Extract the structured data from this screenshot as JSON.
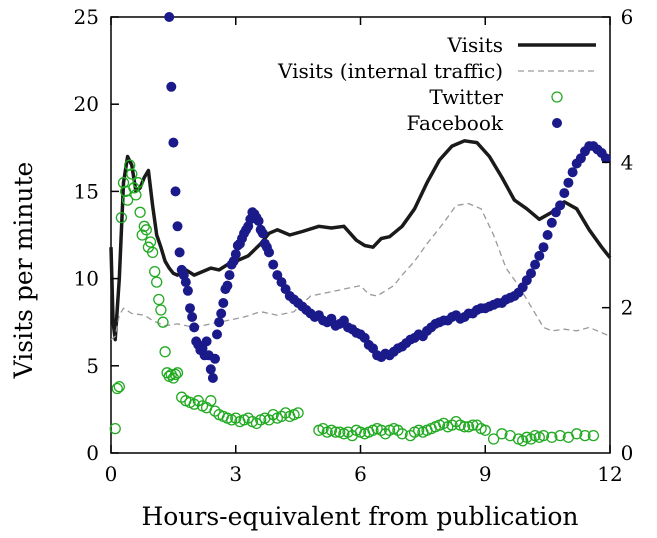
{
  "chart_data": {
    "type": "line",
    "xlabel": "Hours-equivalent from publication",
    "ylabel": "Visits per minute",
    "xlim": [
      0,
      12
    ],
    "ylim": [
      0,
      25
    ],
    "y2lim": [
      0,
      6
    ],
    "x_ticks": [
      0,
      3,
      6,
      9,
      12
    ],
    "y_ticks": [
      0,
      5,
      10,
      15,
      20,
      25
    ],
    "y2_ticks": [
      2,
      4,
      6
    ],
    "grid": false,
    "legend_position": "top-right",
    "series": [
      {
        "name": "Visits",
        "style": "thick-solid",
        "color": "#1a1a1a",
        "axis": "left",
        "x": [
          0.0,
          0.05,
          0.1,
          0.2,
          0.3,
          0.4,
          0.5,
          0.6,
          0.7,
          0.8,
          0.9,
          1.0,
          1.1,
          1.2,
          1.3,
          1.4,
          1.5,
          1.6,
          1.8,
          2.0,
          2.2,
          2.4,
          2.6,
          2.8,
          3.0,
          3.3,
          3.6,
          3.8,
          4.0,
          4.3,
          4.6,
          5.0,
          5.3,
          5.6,
          5.9,
          6.1,
          6.3,
          6.5,
          6.7,
          7.0,
          7.3,
          7.6,
          7.9,
          8.2,
          8.5,
          8.8,
          9.1,
          9.4,
          9.7,
          10.0,
          10.3,
          10.6,
          10.9,
          11.2,
          11.5,
          11.8,
          12.0
        ],
        "y": [
          11.8,
          7.5,
          6.5,
          10,
          15.5,
          17,
          16.5,
          15,
          15.2,
          15.8,
          16.2,
          14.2,
          12.5,
          11.8,
          11.0,
          10.6,
          10.3,
          10.2,
          10.5,
          10.2,
          10.4,
          10.6,
          10.5,
          10.8,
          11.0,
          11.3,
          12.0,
          12.6,
          12.8,
          12.5,
          12.7,
          13.0,
          12.9,
          13.0,
          12.2,
          11.9,
          11.8,
          12.3,
          12.4,
          13.0,
          14.0,
          15.5,
          16.8,
          17.6,
          17.9,
          17.8,
          17.0,
          15.8,
          14.5,
          14.0,
          13.4,
          13.8,
          14.4,
          14.0,
          12.8,
          11.8,
          11.2
        ]
      },
      {
        "name": "Visits (internal traffic)",
        "style": "thin-dashed",
        "color": "#9a9a9a",
        "axis": "left",
        "x": [
          0.0,
          0.1,
          0.2,
          0.3,
          0.5,
          0.8,
          1.0,
          1.3,
          1.6,
          2.0,
          2.4,
          2.8,
          3.2,
          3.6,
          4.0,
          4.4,
          4.8,
          5.2,
          5.6,
          6.0,
          6.2,
          6.4,
          6.6,
          6.8,
          7.0,
          7.3,
          7.6,
          8.0,
          8.3,
          8.6,
          8.9,
          9.2,
          9.5,
          9.8,
          10.1,
          10.4,
          10.6,
          10.9,
          11.2,
          11.5,
          11.8,
          12.0
        ],
        "y": [
          6.5,
          6.7,
          7.9,
          8.3,
          8.0,
          7.9,
          7.6,
          7.3,
          7.4,
          7.2,
          7.4,
          7.6,
          7.8,
          8.1,
          7.9,
          8.1,
          9.0,
          9.2,
          9.4,
          9.6,
          9.1,
          9.0,
          9.3,
          9.6,
          10.2,
          11.0,
          12.0,
          13.2,
          14.2,
          14.3,
          14.0,
          12.5,
          10.6,
          9.6,
          8.4,
          7.2,
          7.0,
          7.1,
          7.0,
          7.2,
          6.9,
          6.7
        ]
      },
      {
        "name": "Twitter",
        "style": "open-circle",
        "color": "#22aa22",
        "axis": "left",
        "x": [
          0.1,
          0.15,
          0.2,
          0.25,
          0.3,
          0.35,
          0.4,
          0.45,
          0.5,
          0.55,
          0.6,
          0.65,
          0.7,
          0.75,
          0.8,
          0.85,
          0.9,
          0.95,
          1.0,
          1.05,
          1.1,
          1.15,
          1.2,
          1.25,
          1.3,
          1.35,
          1.4,
          1.45,
          1.5,
          1.55,
          1.6,
          1.7,
          1.8,
          1.9,
          2.0,
          2.1,
          2.2,
          2.3,
          2.4,
          2.5,
          2.6,
          2.7,
          2.8,
          2.9,
          3.0,
          3.1,
          3.2,
          3.3,
          3.4,
          3.5,
          3.6,
          3.7,
          3.8,
          3.9,
          4.0,
          4.1,
          4.2,
          4.3,
          4.4,
          4.5,
          5.0,
          5.1,
          5.2,
          5.3,
          5.4,
          5.5,
          5.6,
          5.7,
          5.8,
          5.9,
          6.0,
          6.1,
          6.2,
          6.3,
          6.4,
          6.5,
          6.6,
          6.7,
          6.8,
          6.9,
          7.0,
          7.2,
          7.3,
          7.4,
          7.5,
          7.6,
          7.7,
          7.8,
          7.9,
          8.0,
          8.1,
          8.2,
          8.3,
          8.4,
          8.5,
          8.6,
          8.7,
          8.8,
          8.9,
          9.0,
          9.2,
          9.4,
          9.6,
          9.8,
          9.9,
          10.0,
          10.1,
          10.2,
          10.3,
          10.4,
          10.6,
          10.8,
          11.0,
          11.2,
          11.4,
          11.6
        ],
        "y": [
          1.4,
          3.7,
          3.8,
          13.5,
          15.5,
          15.0,
          14.5,
          16.5,
          16.0,
          15.2,
          14.8,
          15.5,
          13.8,
          12.5,
          13.0,
          12.8,
          11.8,
          12.1,
          11.5,
          10.4,
          9.8,
          8.8,
          8.2,
          7.5,
          5.8,
          4.6,
          4.4,
          4.5,
          4.3,
          4.5,
          4.6,
          3.2,
          3.0,
          2.9,
          2.8,
          3.0,
          2.7,
          2.6,
          3.0,
          2.4,
          2.2,
          2.1,
          2.0,
          1.9,
          2.0,
          1.8,
          1.9,
          2.0,
          1.8,
          1.7,
          1.9,
          2.0,
          1.9,
          2.2,
          2.0,
          2.1,
          2.3,
          2.1,
          2.2,
          2.3,
          1.3,
          1.4,
          1.2,
          1.3,
          1.2,
          1.2,
          1.1,
          1.2,
          1.0,
          1.3,
          1.2,
          1.1,
          1.2,
          1.3,
          1.4,
          1.3,
          1.1,
          1.3,
          1.4,
          1.3,
          1.1,
          1.0,
          1.2,
          1.3,
          1.2,
          1.3,
          1.4,
          1.5,
          1.6,
          1.7,
          1.5,
          1.6,
          1.8,
          1.6,
          1.5,
          1.5,
          1.6,
          1.6,
          1.4,
          1.3,
          0.8,
          1.1,
          1.0,
          0.8,
          0.7,
          0.9,
          0.8,
          1.0,
          0.9,
          1.0,
          0.9,
          1.0,
          0.9,
          1.1,
          1.0,
          1.0
        ]
      },
      {
        "name": "Facebook",
        "style": "filled-circle",
        "color": "#1a1a8a",
        "axis": "left",
        "x": [
          1.4,
          1.45,
          1.5,
          1.55,
          1.6,
          1.65,
          1.7,
          1.75,
          1.8,
          1.85,
          1.9,
          1.95,
          2.0,
          2.05,
          2.1,
          2.15,
          2.2,
          2.25,
          2.3,
          2.35,
          2.4,
          2.45,
          2.5,
          2.55,
          2.6,
          2.65,
          2.7,
          2.75,
          2.8,
          2.85,
          2.9,
          2.95,
          3.0,
          3.05,
          3.1,
          3.15,
          3.2,
          3.25,
          3.3,
          3.35,
          3.4,
          3.45,
          3.5,
          3.55,
          3.6,
          3.65,
          3.7,
          3.75,
          3.8,
          3.9,
          4.0,
          4.1,
          4.2,
          4.3,
          4.4,
          4.5,
          4.6,
          4.7,
          4.8,
          4.9,
          5.0,
          5.1,
          5.2,
          5.3,
          5.4,
          5.5,
          5.6,
          5.7,
          5.8,
          5.9,
          6.0,
          6.1,
          6.2,
          6.3,
          6.4,
          6.5,
          6.6,
          6.7,
          6.8,
          6.9,
          7.0,
          7.1,
          7.2,
          7.3,
          7.4,
          7.5,
          7.6,
          7.7,
          7.8,
          7.9,
          8.0,
          8.1,
          8.2,
          8.3,
          8.4,
          8.5,
          8.6,
          8.7,
          8.8,
          8.9,
          9.0,
          9.1,
          9.2,
          9.3,
          9.4,
          9.5,
          9.6,
          9.7,
          9.8,
          9.9,
          10.0,
          10.1,
          10.2,
          10.3,
          10.4,
          10.5,
          10.6,
          10.7,
          10.8,
          10.9,
          11.0,
          11.1,
          11.2,
          11.3,
          11.4,
          11.5,
          11.6,
          11.7,
          11.8,
          11.9
        ],
        "y": [
          25.0,
          21.0,
          17.8,
          15.0,
          13.0,
          11.5,
          10.5,
          10.2,
          9.8,
          9.3,
          8.3,
          7.8,
          7.2,
          6.4,
          6.2,
          5.9,
          6.0,
          5.6,
          6.4,
          5.6,
          4.8,
          4.3,
          5.4,
          6.8,
          7.5,
          8.0,
          8.6,
          9.4,
          9.6,
          10.2,
          10.8,
          11.0,
          11.4,
          11.9,
          12.0,
          12.3,
          12.6,
          12.8,
          13.0,
          13.4,
          13.8,
          13.7,
          13.5,
          13.3,
          12.8,
          12.6,
          12.0,
          11.8,
          11.5,
          10.8,
          10.2,
          9.8,
          9.4,
          9.0,
          8.8,
          8.6,
          8.4,
          8.2,
          8.0,
          7.8,
          7.9,
          7.6,
          7.5,
          7.7,
          7.3,
          7.4,
          7.6,
          7.2,
          7.1,
          6.9,
          6.8,
          6.6,
          6.2,
          6.0,
          5.6,
          5.5,
          5.7,
          5.6,
          5.8,
          6.0,
          6.1,
          6.3,
          6.5,
          6.6,
          6.8,
          6.7,
          7.0,
          7.2,
          7.4,
          7.5,
          7.6,
          7.6,
          7.8,
          7.9,
          7.7,
          7.8,
          8.0,
          8.0,
          8.2,
          8.3,
          8.3,
          8.4,
          8.5,
          8.6,
          8.6,
          8.8,
          8.9,
          9.0,
          9.2,
          9.5,
          9.9,
          10.3,
          10.8,
          11.3,
          11.8,
          12.5,
          13.2,
          13.8,
          14.2,
          14.9,
          15.5,
          16.1,
          16.6,
          16.9,
          17.3,
          17.6,
          17.6,
          17.4,
          17.2,
          16.9
        ]
      }
    ]
  }
}
